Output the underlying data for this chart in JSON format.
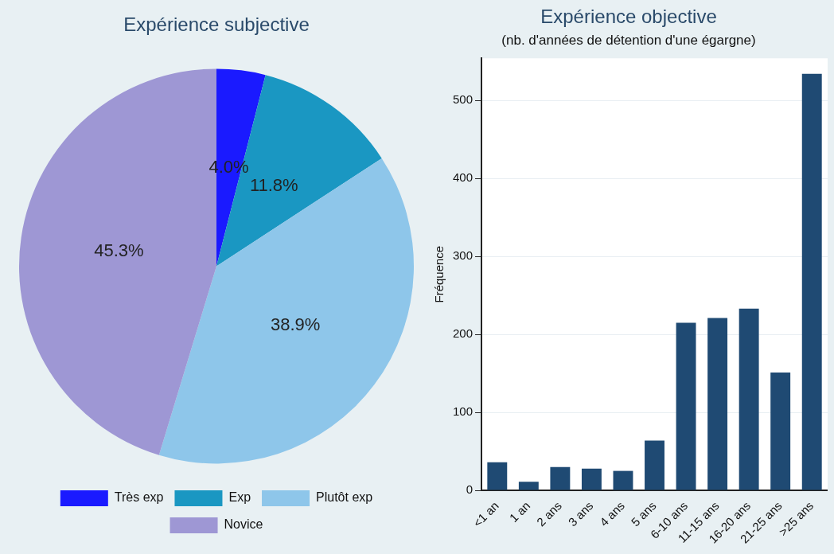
{
  "chart_data": [
    {
      "type": "pie",
      "title": "Expérience subjective",
      "categories": [
        "Très exp",
        "Exp",
        "Plutôt exp",
        "Novice"
      ],
      "values": [
        4.0,
        11.8,
        38.9,
        45.3
      ],
      "colors": [
        "#1a1aff",
        "#1a97c2",
        "#8ec6ea",
        "#9e97d4"
      ],
      "value_labels": [
        "4.0%",
        "11.8%",
        "38.9%",
        "45.3%"
      ],
      "legend": "bottom"
    },
    {
      "type": "bar",
      "title": "Expérience objective",
      "subtitle": "(nb. d'années de détention d'une égargne)",
      "ylabel": "Fréquence",
      "categories": [
        "<1 an",
        "1 an",
        "2 ans",
        "3 ans",
        "4 ans",
        "5 ans",
        "6-10 ans",
        "11-15 ans",
        "16-20 ans",
        "21-25 ans",
        ">25 ans"
      ],
      "values": [
        36,
        11,
        30,
        28,
        25,
        64,
        215,
        221,
        233,
        151,
        534
      ],
      "color": "#1f4a73",
      "ylim": [
        0,
        554
      ],
      "yticks": [
        0,
        100,
        200,
        300,
        400,
        500
      ],
      "grid": "y",
      "legend": false
    }
  ]
}
